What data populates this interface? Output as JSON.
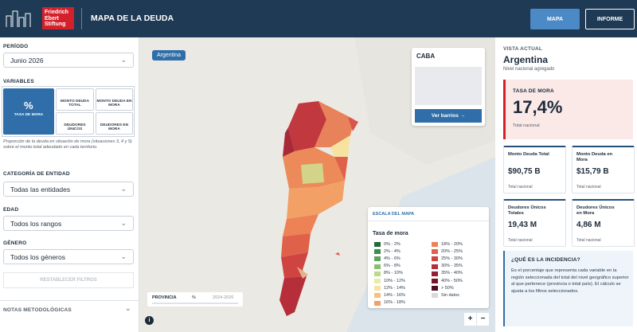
{
  "header": {
    "logo": "Friedrich Ebert Stiftung",
    "title": "MAPA DE LA DEUDA",
    "tabs": [
      "MAPA",
      "INFORME"
    ]
  },
  "sidebar": {
    "period_label": "PERÍODO",
    "period": "Junio 2026",
    "variables_label": "VARIABLES",
    "variables": [
      "TASA DE MORA",
      "MONTO DEUDA TOTAL",
      "MONTO DEUDA EN MORA",
      "DEUDORES ÚNICOS",
      "DEUDORES EN MORA"
    ],
    "description": "Proporción de la deuda en situación de mora (situaciones 3, 4 y 5) sobre el monto total adeudado en cada territorio.",
    "filters": [
      {
        "label": "CATEGORÍA DE ENTIDAD",
        "value": "Todas las entidades"
      },
      {
        "label": "EDAD",
        "value": "Todos los rangos"
      },
      {
        "label": "GÉNERO",
        "value": "Todos los géneros"
      }
    ],
    "reset": "RESTABLECER FILTROS",
    "notes": "NOTAS METODOLÓGICAS"
  },
  "map": {
    "badge": "Argentina",
    "inset": {
      "title": "CABA",
      "button": "Ver barrios →"
    },
    "legend": {
      "header": "ESCALA DEL MAPA",
      "title": "Tasa de mora",
      "items": [
        {
          "label": "0% - 2%",
          "color": "#1f6b3a"
        },
        {
          "label": "2% - 4%",
          "color": "#3d8b4f"
        },
        {
          "label": "4% - 6%",
          "color": "#5fa35f"
        },
        {
          "label": "6% - 8%",
          "color": "#8cbf6a"
        },
        {
          "label": "8% - 10%",
          "color": "#bcd88a"
        },
        {
          "label": "10% - 12%",
          "color": "#e6ecaa"
        },
        {
          "label": "12% - 14%",
          "color": "#f7e3a0"
        },
        {
          "label": "14% - 16%",
          "color": "#f6c17e"
        },
        {
          "label": "16% - 18%",
          "color": "#f2a066"
        },
        {
          "label": "18% - 20%",
          "color": "#ec8255"
        },
        {
          "label": "20% - 25%",
          "color": "#e0614a"
        },
        {
          "label": "25% - 30%",
          "color": "#cf4440"
        },
        {
          "label": "30% - 35%",
          "color": "#b52e3a"
        },
        {
          "label": "35% - 40%",
          "color": "#961f34"
        },
        {
          "label": "40% - 50%",
          "color": "#74142c"
        },
        {
          "label": "> 50%",
          "color": "#4f0b20"
        },
        {
          "label": "Sin datos",
          "color": "#d9d9d9"
        }
      ]
    },
    "timeline": {
      "level": "PROVINCIA",
      "unit": "%",
      "range": "2024-2026"
    },
    "zoom_in": "+",
    "zoom_out": "−",
    "info": "i"
  },
  "panel": {
    "label": "VISTA ACTUAL",
    "place": "Argentina",
    "subtitle": "Nivel nacional agregado",
    "main": {
      "title": "TASA DE MORA",
      "value": "17,4%",
      "note": "Total nacional"
    },
    "cards": [
      {
        "title": "Monto Deuda Total",
        "value": "$90,75 B",
        "note": "Total nacional"
      },
      {
        "title": "Monto Deuda en Mora",
        "value": "$15,79 B",
        "note": "Total nacional"
      },
      {
        "title": "Deudores Únicos Totales",
        "value": "19,43 M",
        "note": "Total nacional"
      },
      {
        "title": "Deudores Únicos en Mora",
        "value": "4,86 M",
        "note": "Total nacional"
      }
    ],
    "info": {
      "title": "¿QUÉ ES LA INCIDENCIA?",
      "text": "Es el porcentaje que representa cada variable en la región seleccionada del total del nivel geográfico superior al que pertenece (provincia o total país). El cálculo se ajusta a los filtros seleccionados."
    }
  }
}
